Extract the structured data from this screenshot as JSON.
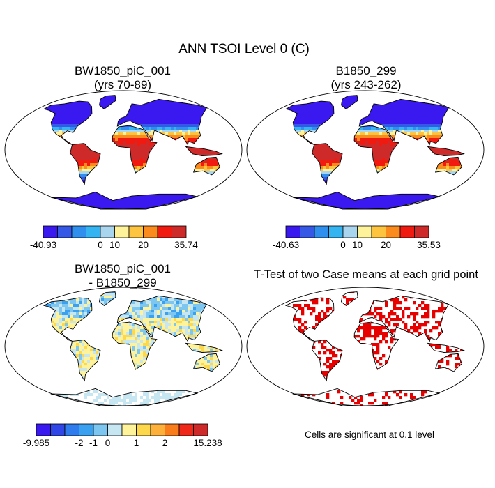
{
  "title": "ANN TSOI Level 0 (C)",
  "panels": [
    {
      "id": "tl",
      "title_line1": "BW1850_piC_001",
      "title_line2": "(yrs 70-89)"
    },
    {
      "id": "tr",
      "title_line1": "B1850_299",
      "title_line2": "(yrs 243-262)"
    },
    {
      "id": "bl",
      "title_line1": "BW1850_piC_001",
      "title_line2": "- B1850_299"
    },
    {
      "id": "br",
      "title_line1": "T-Test of two Case means at each grid point"
    }
  ],
  "colorbars": {
    "tl": {
      "colors": [
        "#3a19f0",
        "#3558e6",
        "#2f8fee",
        "#34b5f2",
        "#a9d6ee",
        "#fef39a",
        "#fdc43f",
        "#fa8b1c",
        "#f11a10",
        "#cf2a2a"
      ],
      "labels": [
        "-40.93",
        "0",
        "10",
        "20",
        "35.74"
      ]
    },
    "tr": {
      "colors": [
        "#3a19f0",
        "#3558e6",
        "#2f8fee",
        "#34b5f2",
        "#a9d6ee",
        "#fef39a",
        "#fdc43f",
        "#fa8b1c",
        "#f11a10",
        "#cf2a2a"
      ],
      "labels": [
        "-40.63",
        "0",
        "10",
        "20",
        "35.53"
      ]
    },
    "bl": {
      "colors": [
        "#3a19f0",
        "#3046e6",
        "#2f7cee",
        "#3aa0f0",
        "#7cc6f0",
        "#c6e6f2",
        "#fef39a",
        "#fdd84c",
        "#fdb13a",
        "#fa7d1c",
        "#f0281a",
        "#cf2a2a"
      ],
      "labels": [
        "-9.985",
        "-2",
        "-1",
        "0",
        "1",
        "2",
        "15.238"
      ]
    }
  },
  "note": "Cells are significant at 0.1 level",
  "colors": {
    "land_outline": "#000000",
    "significance": "#e60000"
  }
}
